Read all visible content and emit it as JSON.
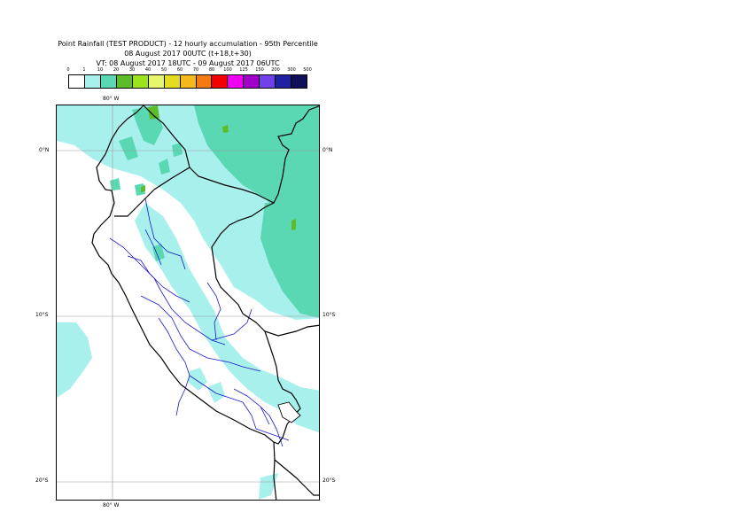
{
  "title": {
    "line1": "Point Rainfall (TEST PRODUCT) - 12 hourly accumulation - 95th Percentile",
    "line2": "08 August 2017 00UTC (t+18,t+30)",
    "line3": "VT: 08 August 2017 18UTC - 09 August 2017 06UTC"
  },
  "legend": {
    "labels": [
      "0",
      "1",
      "10",
      "20",
      "30",
      "40",
      "50",
      "60",
      "70",
      "80",
      "100",
      "125",
      "150",
      "200",
      "300",
      "500"
    ],
    "colors": [
      "#ffffff",
      "#a8f0ec",
      "#5ad8b4",
      "#5cbc2a",
      "#9be31c",
      "#e6f56a",
      "#e4dc20",
      "#f4b81a",
      "#f47a16",
      "#f40000",
      "#f000f0",
      "#a000c8",
      "#7040e8",
      "#2020a0",
      "#101058"
    ]
  },
  "map": {
    "lon_labels": {
      "top": "80° W",
      "bottom": "80° W"
    },
    "lat_labels": [
      {
        "left": "0°N",
        "right": "0°N"
      },
      {
        "left": "10°S",
        "right": "10°S"
      },
      {
        "left": "20°S",
        "right": "20°S"
      }
    ]
  }
}
